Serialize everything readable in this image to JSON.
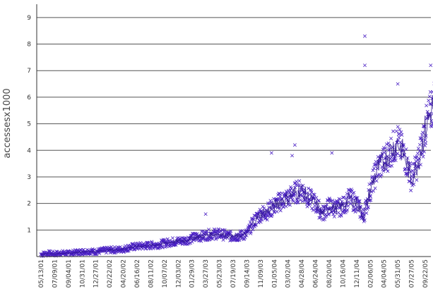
{
  "chart_data": {
    "type": "scatter",
    "title": "",
    "xlabel": "",
    "ylabel": "accessesx1000",
    "ylim": [
      0,
      9.5
    ],
    "y_ticks": [
      "1",
      "2",
      "3",
      "4",
      "5",
      "6",
      "7",
      "8",
      "9"
    ],
    "x_ticks": [
      "05/13/01",
      "07/09/01",
      "09/04/01",
      "10/31/01",
      "12/27/01",
      "02/22/02",
      "04/20/02",
      "06/16/02",
      "08/11/02",
      "10/07/02",
      "12/03/02",
      "01/29/03",
      "03/27/03",
      "05/23/03",
      "07/19/03",
      "09/14/03",
      "11/09/03",
      "01/05/04",
      "03/02/04",
      "04/28/04",
      "06/24/04",
      "08/20/04",
      "10/16/04",
      "12/11/04",
      "02/06/05",
      "04/04/05",
      "05/31/05",
      "07/27/05",
      "09/22/05"
    ],
    "grid": true,
    "series": [
      {
        "values": [
          [
            0.0,
            0.08
          ],
          [
            0.5,
            0.12
          ],
          [
            1.0,
            0.1
          ],
          [
            1.5,
            0.13
          ],
          [
            2.0,
            0.12
          ],
          [
            2.5,
            0.15
          ],
          [
            3.0,
            0.18
          ],
          [
            3.5,
            0.2
          ],
          [
            4.0,
            0.18
          ],
          [
            4.5,
            0.22
          ],
          [
            5.0,
            0.25
          ],
          [
            5.5,
            0.25
          ],
          [
            6.0,
            0.28
          ],
          [
            6.5,
            0.35
          ],
          [
            7.0,
            0.38
          ],
          [
            7.5,
            0.4
          ],
          [
            8.0,
            0.42
          ],
          [
            8.5,
            0.45
          ],
          [
            9.0,
            0.5
          ],
          [
            9.5,
            0.55
          ],
          [
            10.0,
            0.58
          ],
          [
            10.5,
            0.6
          ],
          [
            11.0,
            0.7
          ],
          [
            11.5,
            0.75
          ],
          [
            12.0,
            0.8
          ],
          [
            12.5,
            0.85
          ],
          [
            13.0,
            0.85
          ],
          [
            13.5,
            0.8
          ],
          [
            14.0,
            0.75
          ],
          [
            14.5,
            0.78
          ],
          [
            15.0,
            0.85
          ],
          [
            15.5,
            1.3
          ],
          [
            16.0,
            1.6
          ],
          [
            16.5,
            1.7
          ],
          [
            17.0,
            1.9
          ],
          [
            17.5,
            2.1
          ],
          [
            18.0,
            2.2
          ],
          [
            18.5,
            2.4
          ],
          [
            19.0,
            2.5
          ],
          [
            19.5,
            2.2
          ],
          [
            20.0,
            2.0
          ],
          [
            20.5,
            1.6
          ],
          [
            21.0,
            1.9
          ],
          [
            21.5,
            1.8
          ],
          [
            22.0,
            1.9
          ],
          [
            22.5,
            2.2
          ],
          [
            23.0,
            2.0
          ],
          [
            23.5,
            1.5
          ],
          [
            24.0,
            2.5
          ],
          [
            24.5,
            3.3
          ],
          [
            25.0,
            3.6
          ],
          [
            25.5,
            4.0
          ],
          [
            26.0,
            4.3
          ],
          [
            26.5,
            3.8
          ],
          [
            27.0,
            2.9
          ],
          [
            27.5,
            3.6
          ],
          [
            28.0,
            4.8
          ],
          [
            28.5,
            5.6
          ],
          [
            28.9,
            6.2
          ]
        ],
        "outliers": [
          [
            23.6,
            8.3
          ],
          [
            23.6,
            7.2
          ],
          [
            28.8,
            7.7
          ],
          [
            28.4,
            7.2
          ],
          [
            26.0,
            6.5
          ],
          [
            16.8,
            3.9
          ],
          [
            18.3,
            3.8
          ],
          [
            18.5,
            4.2
          ],
          [
            12.0,
            1.6
          ],
          [
            21.2,
            3.9
          ]
        ],
        "color": "#4b21c4"
      }
    ]
  }
}
